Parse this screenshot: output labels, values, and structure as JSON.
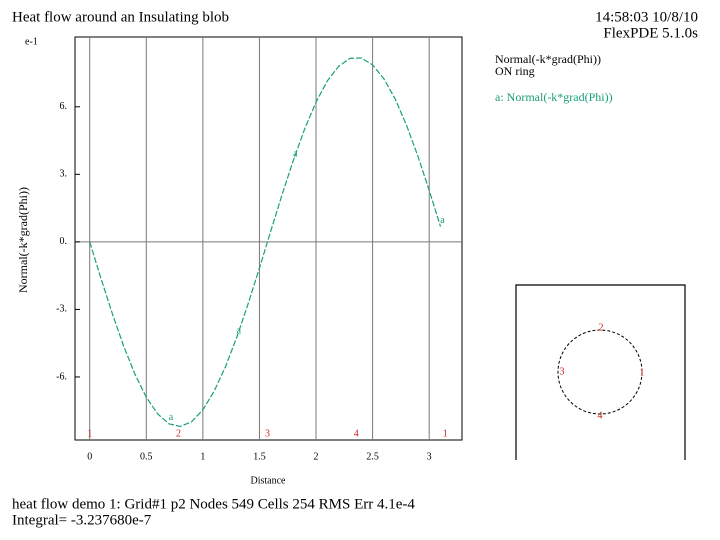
{
  "chart_data": {
    "type": "line",
    "title": "Heat flow around an Insulating blob",
    "timestamp": "14:58:03 10/8/10",
    "software": "FlexPDE 5.1.0s",
    "y_exponent": "e-1",
    "ylabel": "Normal(-k*grad(Phi))",
    "xlabel": "Distance",
    "legend_title": [
      "Normal(-k*grad(Phi))",
      "ON ring"
    ],
    "x": [
      0,
      0.1,
      0.2,
      0.3,
      0.4,
      0.5,
      0.6,
      0.7,
      0.8,
      0.9,
      1.0,
      1.1,
      1.2,
      1.3,
      1.4,
      1.5,
      1.6,
      1.7,
      1.8,
      1.9,
      2.0,
      2.1,
      2.2,
      2.3,
      2.4,
      2.5,
      2.6,
      2.7,
      2.8,
      2.9,
      3.0,
      3.1
    ],
    "series": [
      {
        "name": "a: Normal(-k*grad(Phi))",
        "color": "#1a9f78",
        "values": [
          0,
          -1.63,
          -3.19,
          -4.63,
          -5.88,
          -6.9,
          -7.64,
          -8.08,
          -8.2,
          -7.99,
          -7.46,
          -6.63,
          -5.54,
          -4.23,
          -2.75,
          -1.16,
          0.48,
          2.1,
          3.63,
          5.02,
          6.21,
          7.15,
          7.8,
          8.15,
          8.17,
          7.86,
          7.24,
          6.34,
          5.18,
          3.81,
          2.29,
          0.68
        ]
      }
    ],
    "curve_marks": [
      "a",
      "a",
      "a",
      "a"
    ],
    "ring_points": [
      {
        "x": 0,
        "label": "1"
      },
      {
        "x": 0.785,
        "label": "2"
      },
      {
        "x": 1.571,
        "label": "3"
      },
      {
        "x": 2.356,
        "label": "4"
      },
      {
        "x": 3.142,
        "label": "1"
      }
    ],
    "inset_labels": [
      "1",
      "2",
      "3",
      "4"
    ],
    "xlim": [
      -0.13,
      3.29
    ],
    "ylim": [
      -8.8,
      9.1
    ],
    "xticks": [
      0,
      0.5,
      1,
      1.5,
      2,
      2.5,
      3
    ],
    "yticks": [
      {
        "value": 6,
        "label": "6."
      },
      {
        "value": 3,
        "label": "3."
      },
      {
        "value": 0,
        "label": "0."
      },
      {
        "value": -3,
        "label": "-3."
      },
      {
        "value": -6,
        "label": "-6."
      }
    ],
    "grid": true,
    "footer": [
      "heat flow demo 1:  Grid#1  p2  Nodes  549 Cells  254 RMS Err   4.1e-4",
      "Integral= -3.237680e-7"
    ]
  }
}
